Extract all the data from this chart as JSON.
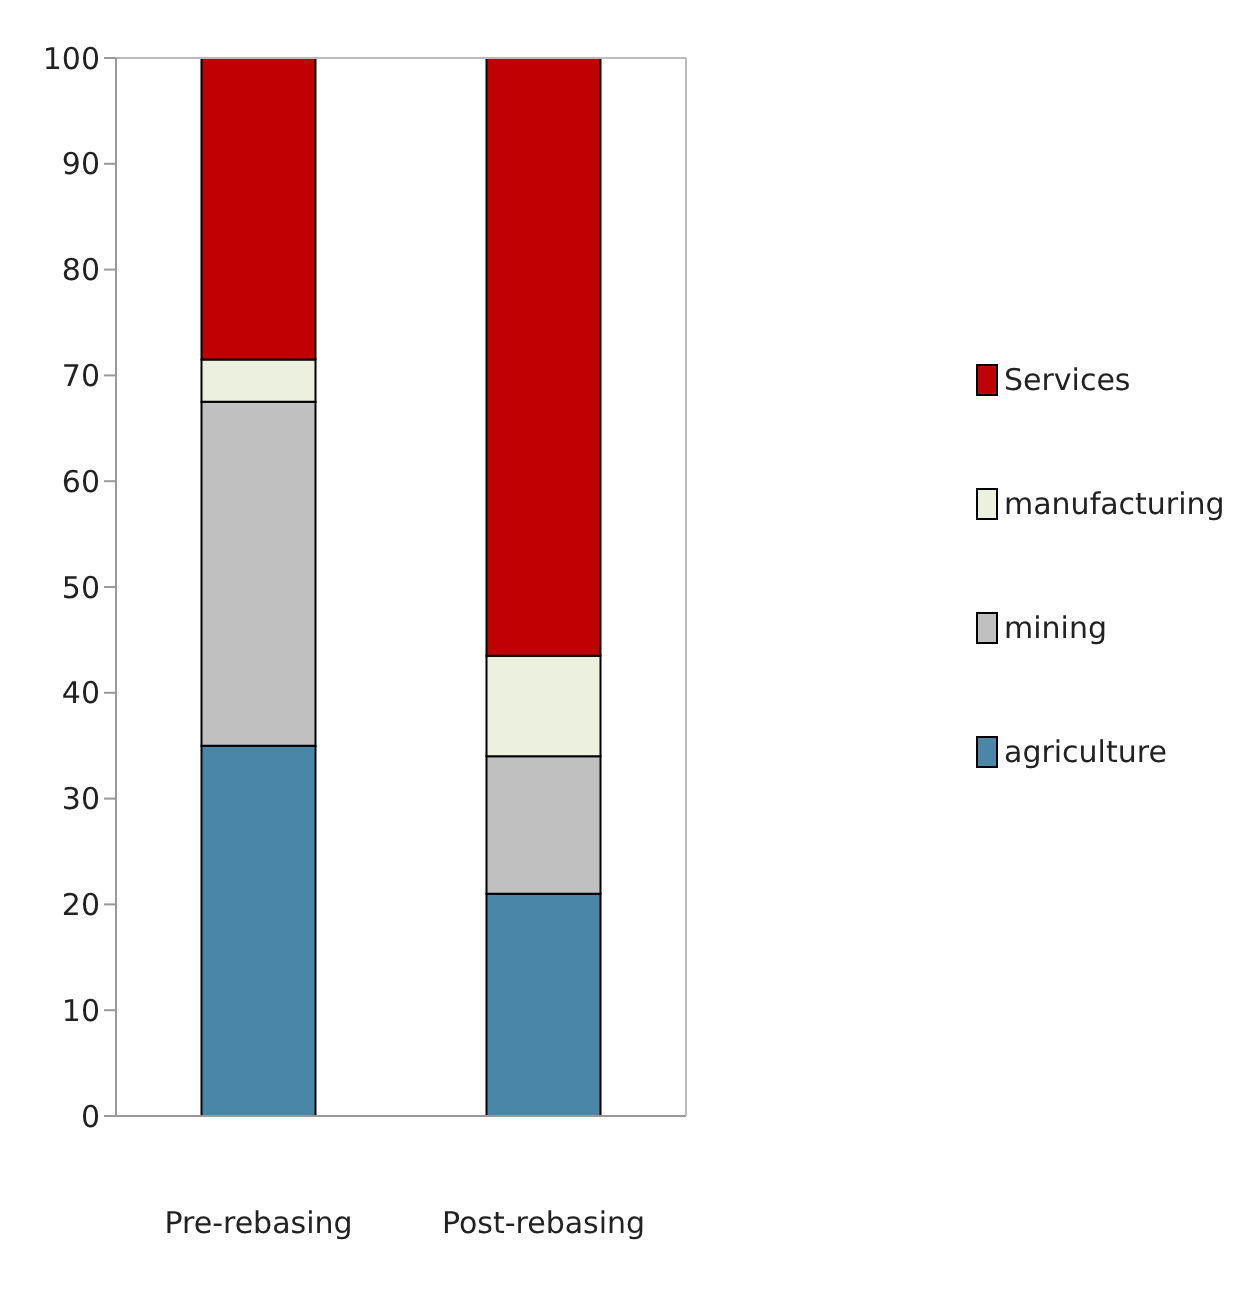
{
  "chart_data": {
    "type": "bar",
    "stacked": true,
    "categories": [
      "Pre-rebasing",
      "Post-rebasing"
    ],
    "series": [
      {
        "name": "agriculture",
        "color": "#4a86a8",
        "values": [
          35,
          21
        ]
      },
      {
        "name": "mining",
        "color": "#c0c0c0",
        "values": [
          32.5,
          13
        ]
      },
      {
        "name": "manufacturing",
        "color": "#ebf1de",
        "values": [
          4,
          9.5
        ]
      },
      {
        "name": "Services",
        "color": "#c00000",
        "values": [
          28.5,
          56.5
        ]
      }
    ],
    "ylim": [
      0,
      100
    ],
    "yticks": [
      0,
      10,
      20,
      30,
      40,
      50,
      60,
      70,
      80,
      90,
      100
    ],
    "grid": false,
    "legend": "right"
  }
}
